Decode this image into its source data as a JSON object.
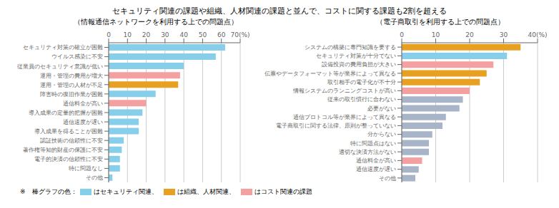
{
  "chart_data": [
    {
      "type": "bar",
      "orientation": "horizontal",
      "title": "セキュリティ関連の課題や組織、人材関連の課題と並んで、コストに関する課題も2割を超える",
      "subtitle": "（情報通信ネットワークを利用する上での問題点）",
      "categories": [
        "セキュリティ対策の確立が困難",
        "ウイルス感染に不安",
        "従業員のセキュリティ意識が低い",
        "運用・管理の費用が増大",
        "運用・管理の人材が不足",
        "障害時の復旧作業が困難",
        "通信料金が高い",
        "導入成果の定量的把握が困難",
        "通信速度が遅い",
        "導入成果を得ることが困難",
        "認証技術の信頼性に不安",
        "著作権等知的財産の保護に不安",
        "電子的決済の信頼性に不安",
        "特に問題なし",
        "その他"
      ],
      "values": [
        62,
        57,
        40,
        38,
        37,
        25,
        20,
        18,
        16,
        16,
        8,
        7,
        6,
        6,
        2
      ],
      "colors": [
        "#87CEEB",
        "#87CEEB",
        "#87CEEB",
        "#F4A0A0",
        "#E8A020",
        "#87CEEB",
        "#F4A0A0",
        "#87CEEB",
        "#87CEEB",
        "#87CEEB",
        "#87CEEB",
        "#87CEEB",
        "#87CEEB",
        "#87CEEB",
        "#87CEEB"
      ],
      "xlim": [
        0,
        70
      ],
      "xticks": [
        0,
        10,
        20,
        30,
        40,
        50,
        60,
        {
          "value": 70,
          "label": "70(%)"
        }
      ],
      "grid": true,
      "legend": "bottom",
      "annotations": [
        "※　棒グラフの色："
      ],
      "legend_entries": [
        {
          "name": "はセキュリティ関連、",
          "color": "#87CEEB"
        },
        {
          "name": "は組織、人材関連、",
          "color": "#E8A020"
        },
        {
          "name": "はコスト関連の課題",
          "color": "#F4A0A0"
        }
      ]
    },
    {
      "type": "bar",
      "orientation": "horizontal",
      "subtitle": "（電子商取引を利用する上での問題点）",
      "categories": [
        "システムの構築に専門知識を要する",
        "セキュリティ対策が十分でない",
        "設備投資の費用負担が大きい",
        "伝票やデータフォーマット等が業界によって異なる",
        "取引相手の電子化が不十分",
        "情報システムのランニングコストが高い",
        "従来の取引慣行に合わない",
        "必要がない",
        "通信プロトコル等が業界によって異なる",
        "電子商取引に関する法律、原則が整っていない",
        "分からない",
        "特に問題点はない",
        "適切な決済方法がない",
        "通信料金が高い",
        "通信速度が遅い",
        "その他"
      ],
      "values": [
        35,
        31,
        27,
        25,
        23,
        20,
        18,
        17,
        13,
        12,
        9,
        8,
        8,
        6,
        5,
        4
      ],
      "colors": [
        "#E8A020",
        "#87CEEB",
        "#F4A0A0",
        "#E8A020",
        "#E8A020",
        "#F4A0A0",
        "#A8B4C8",
        "#A8B4C8",
        "#A8B4C8",
        "#A8B4C8",
        "#A8B4C8",
        "#A8B4C8",
        "#A8B4C8",
        "#F4A0A0",
        "#A8B4C8",
        "#A8B4C8"
      ],
      "xlim": [
        0,
        40
      ],
      "xticks": [
        0,
        10,
        20,
        30,
        {
          "value": 40,
          "label": "40(%)"
        }
      ],
      "grid": true
    }
  ]
}
